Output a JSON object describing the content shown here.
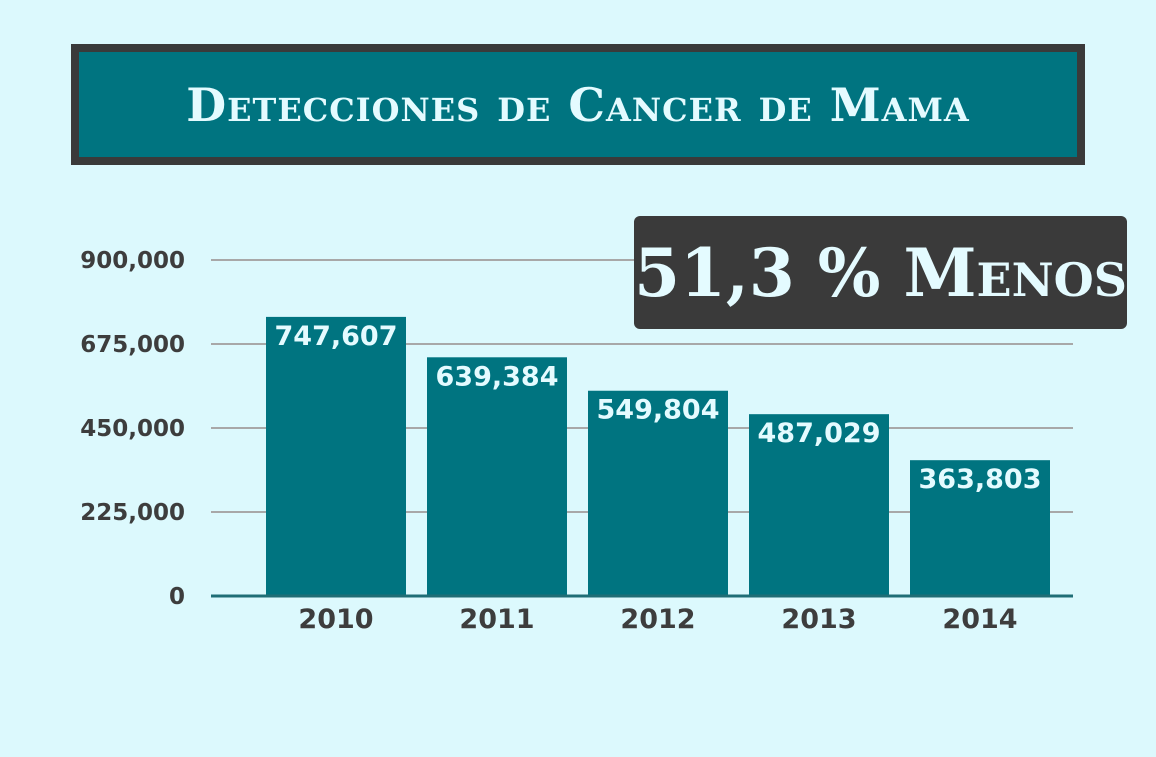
{
  "chart_data": {
    "type": "bar",
    "title": "Detecciones de Cancer de Mama",
    "callout": "51,3 % Menos",
    "categories": [
      "2010",
      "2011",
      "2012",
      "2013",
      "2014"
    ],
    "values": [
      747607,
      639384,
      549804,
      487029,
      363803
    ],
    "value_labels": [
      "747,607",
      "639,384",
      "549,804",
      "487,029",
      "363,803"
    ],
    "ylim": [
      0,
      900000
    ],
    "yticks": [
      0,
      225000,
      450000,
      675000,
      900000
    ],
    "ytick_labels": [
      "0",
      "225,000",
      "450,000",
      "675,000",
      "900,000"
    ],
    "grid": true,
    "colors": {
      "background": "#dcf9fd",
      "bar": "#007480",
      "grid": "#a8a8a8",
      "baseline": "#1f6e76",
      "callout_bg": "#3a3a3a",
      "title_bg": "#007480",
      "title_border": "#3a3a3a",
      "label_light": "#e4fbff",
      "label_dark": "#3d3d3d"
    }
  }
}
